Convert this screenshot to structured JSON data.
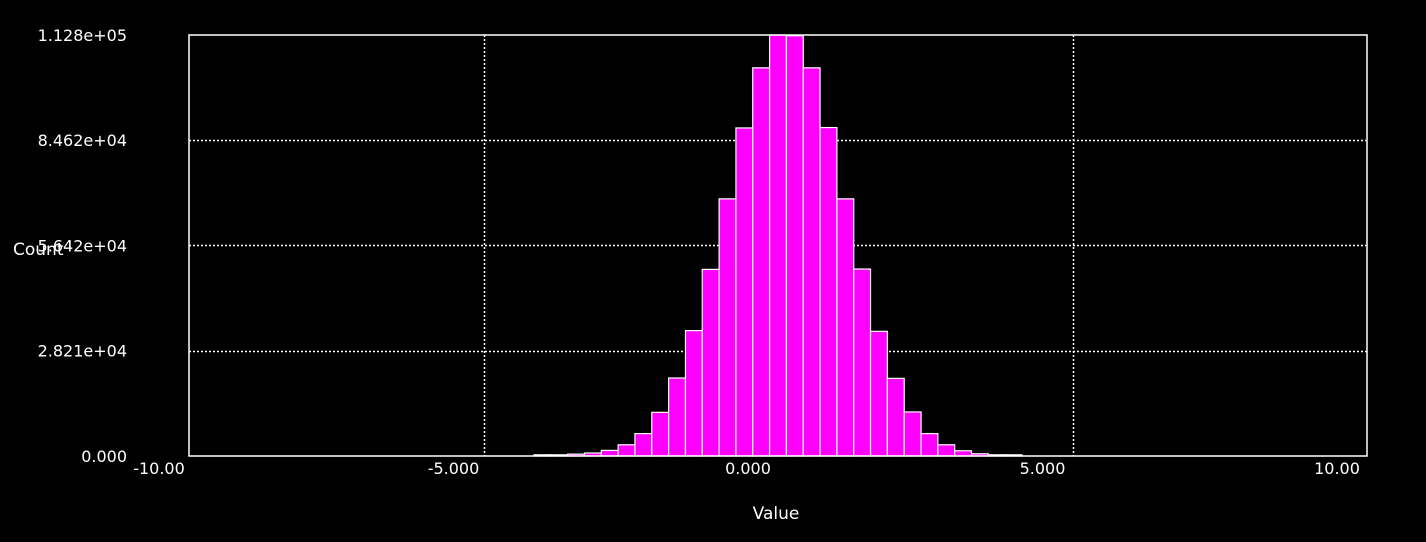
{
  "chart_data": {
    "type": "bar",
    "title": "",
    "xlabel": "Value",
    "ylabel": "Count",
    "xlim": [
      -10,
      10
    ],
    "ylim": [
      0,
      112800
    ],
    "grid": true,
    "legend": "none",
    "colors": {
      "background": "#000000",
      "bar_fill": "#ff00ff",
      "bar_edge": "#ffffff",
      "axes": "#ffffff",
      "grid": "#ffffff",
      "text": "#ffffff"
    },
    "x_ticks": [
      {
        "value": -10,
        "label": "-10.00"
      },
      {
        "value": -5,
        "label": "-5.000"
      },
      {
        "value": 0,
        "label": "0.000"
      },
      {
        "value": 5,
        "label": "5.000"
      },
      {
        "value": 10,
        "label": "10.00"
      }
    ],
    "y_ticks": [
      {
        "value": 0,
        "label": "0.000"
      },
      {
        "value": 28210,
        "label": "2.821e+04"
      },
      {
        "value": 56420,
        "label": "5.642e+04"
      },
      {
        "value": 84620,
        "label": "8.462e+04"
      },
      {
        "value": 112800,
        "label": "1.128e+05"
      }
    ],
    "bins": [
      {
        "x0": -5.0,
        "x1": -4.714,
        "count": 0
      },
      {
        "x0": -4.714,
        "x1": -4.429,
        "count": 0
      },
      {
        "x0": -4.429,
        "x1": -4.143,
        "count": 0
      },
      {
        "x0": -4.143,
        "x1": -3.857,
        "count": 100
      },
      {
        "x0": -3.857,
        "x1": -3.571,
        "count": 300
      },
      {
        "x0": -3.571,
        "x1": -3.286,
        "count": 500
      },
      {
        "x0": -3.286,
        "x1": -3.0,
        "count": 800
      },
      {
        "x0": -3.0,
        "x1": -2.714,
        "count": 1500
      },
      {
        "x0": -2.714,
        "x1": -2.429,
        "count": 3000
      },
      {
        "x0": -2.429,
        "x1": -2.143,
        "count": 6000
      },
      {
        "x0": -2.143,
        "x1": -1.857,
        "count": 11700
      },
      {
        "x0": -1.857,
        "x1": -1.571,
        "count": 20900
      },
      {
        "x0": -1.571,
        "x1": -1.286,
        "count": 33600
      },
      {
        "x0": -1.286,
        "x1": -1.0,
        "count": 50000
      },
      {
        "x0": -1.0,
        "x1": -0.714,
        "count": 68900
      },
      {
        "x0": -0.714,
        "x1": -0.429,
        "count": 87900
      },
      {
        "x0": -0.429,
        "x1": -0.143,
        "count": 104000
      },
      {
        "x0": -0.143,
        "x1": 0.143,
        "count": 112800
      },
      {
        "x0": 0.143,
        "x1": 0.429,
        "count": 112600
      },
      {
        "x0": 0.429,
        "x1": 0.714,
        "count": 104000
      },
      {
        "x0": 0.714,
        "x1": 1.0,
        "count": 88000
      },
      {
        "x0": 1.0,
        "x1": 1.286,
        "count": 68900
      },
      {
        "x0": 1.286,
        "x1": 1.571,
        "count": 50100
      },
      {
        "x0": 1.571,
        "x1": 1.857,
        "count": 33400
      },
      {
        "x0": 1.857,
        "x1": 2.143,
        "count": 20800
      },
      {
        "x0": 2.143,
        "x1": 2.429,
        "count": 11800
      },
      {
        "x0": 2.429,
        "x1": 2.714,
        "count": 6000
      },
      {
        "x0": 2.714,
        "x1": 3.0,
        "count": 3000
      },
      {
        "x0": 3.0,
        "x1": 3.286,
        "count": 1400
      },
      {
        "x0": 3.286,
        "x1": 3.571,
        "count": 600
      },
      {
        "x0": 3.571,
        "x1": 3.857,
        "count": 300
      },
      {
        "x0": 3.857,
        "x1": 4.143,
        "count": 100
      }
    ]
  }
}
